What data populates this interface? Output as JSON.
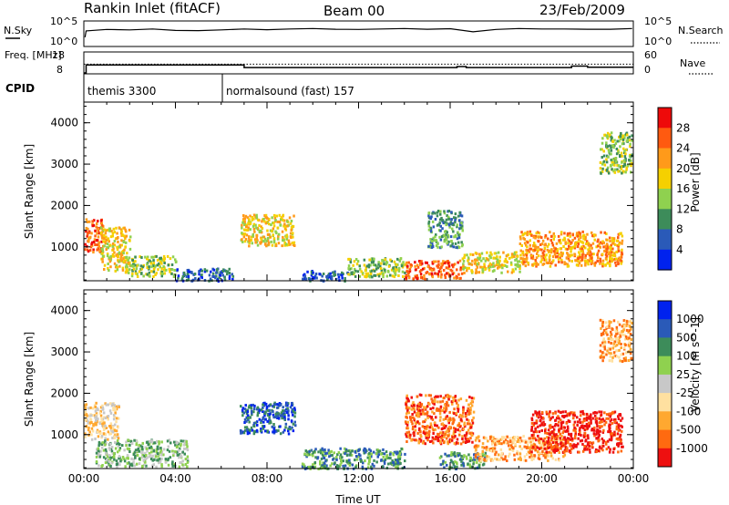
{
  "header": {
    "station": "Rankin Inlet (fitACF)",
    "beam": "Beam 00",
    "date": "23/Feb/2009"
  },
  "colors": {
    "scale_power": [
      "#0022ee",
      "#2a5ab8",
      "#3d8c5a",
      "#8fd14f",
      "#f5d000",
      "#ff9a1a",
      "#ff5a10",
      "#ee0a0a"
    ],
    "scale_velocity": [
      "#ee1010",
      "#ff6a10",
      "#ffa830",
      "#ffe0a0",
      "#c8c8c8",
      "#8fd14f",
      "#3d8c5a",
      "#2a5ab8",
      "#0022ee"
    ],
    "ground_scatter": "#a0a0a0"
  },
  "chart_data": [
    {
      "type": "line",
      "id": "nsky",
      "ylabel": "N.Sky",
      "ylabel_right": "N.Search",
      "y_ticks": [
        "10^5",
        "10^0"
      ],
      "y_ticks_right": [
        "10^5",
        "10^0"
      ],
      "xlim": [
        0,
        24
      ],
      "series": [
        {
          "values": [
            0.35,
            0.62,
            0.68,
            0.66,
            0.7,
            0.64,
            0.63,
            0.66,
            0.7,
            0.67,
            0.7,
            0.72,
            0.69,
            0.68,
            0.7,
            0.72,
            0.69,
            0.71,
            0.58,
            0.68,
            0.72,
            0.7,
            0.7,
            0.69,
            0.69,
            0.72
          ],
          "x": [
            0.05,
            0.1,
            1,
            2,
            3,
            4,
            5,
            6,
            7,
            8,
            9,
            10,
            11,
            12,
            13,
            14,
            15,
            16,
            17,
            18,
            19,
            20,
            21,
            22,
            23,
            23.95
          ]
        }
      ]
    },
    {
      "type": "line",
      "id": "freq",
      "ylabel": "Freq. [MHz]",
      "ylabel_right": "Nave",
      "y_ticks": [
        "18",
        "8"
      ],
      "y_ticks_right": [
        "60",
        "0"
      ],
      "ylim": [
        8,
        18
      ],
      "xlim": [
        0,
        24
      ],
      "series": [
        {
          "x": [
            0,
            0.1,
            0.1,
            7,
            7,
            13,
            13,
            16.3,
            16.3,
            16.7,
            16.7,
            19.5,
            19.5,
            21.3,
            21.3,
            22,
            22,
            24
          ],
          "values": [
            8,
            8,
            12,
            12,
            10.7,
            10.7,
            10.7,
            10.7,
            11.2,
            11.2,
            10.7,
            10.7,
            10.7,
            10.7,
            11.4,
            11.4,
            10.8,
            10.8
          ]
        }
      ],
      "nave_reference_line": 12.4
    },
    {
      "type": "bar",
      "id": "cpid",
      "ylabel": "CPID",
      "segments": [
        {
          "label": "themis 3300",
          "start": 0,
          "end": 6.05
        },
        {
          "label": "normalsound (fast) 157",
          "start": 6.05,
          "end": 24
        }
      ]
    },
    {
      "type": "heatmap",
      "id": "power",
      "ylabel": "Slant Range [km]",
      "colorbar_label": "Power [dB]",
      "colorbar_ticks": [
        "28",
        "24",
        "20",
        "16",
        "12",
        "8",
        "4"
      ],
      "xlim": [
        0,
        24
      ],
      "ylim": [
        180,
        4500
      ],
      "y_ticks": [
        "1000",
        "2000",
        "3000",
        "4000"
      ],
      "x_ticks": [
        "00:00",
        "04:00",
        "08:00",
        "12:00",
        "16:00",
        "20:00",
        "00:00"
      ],
      "scatter_regions": [
        {
          "x": [
            0.0,
            0.8
          ],
          "y": [
            900,
            1700
          ],
          "level": 6
        },
        {
          "x": [
            0.7,
            2.0
          ],
          "y": [
            400,
            1500
          ],
          "level": 4
        },
        {
          "x": [
            2.0,
            4.0
          ],
          "y": [
            300,
            800
          ],
          "level": 3
        },
        {
          "x": [
            4.0,
            6.5
          ],
          "y": [
            200,
            500
          ],
          "level": 1
        },
        {
          "x": [
            6.8,
            9.2
          ],
          "y": [
            1050,
            1800
          ],
          "level": 4
        },
        {
          "x": [
            9.5,
            11.5
          ],
          "y": [
            200,
            450
          ],
          "level": 1
        },
        {
          "x": [
            11.5,
            14.0
          ],
          "y": [
            300,
            750
          ],
          "level": 3
        },
        {
          "x": [
            14.0,
            16.5
          ],
          "y": [
            250,
            700
          ],
          "level": 6
        },
        {
          "x": [
            15.0,
            16.5
          ],
          "y": [
            1000,
            1900
          ],
          "level": 2
        },
        {
          "x": [
            16.5,
            19.0
          ],
          "y": [
            400,
            900
          ],
          "level": 4
        },
        {
          "x": [
            19.0,
            23.5
          ],
          "y": [
            550,
            1400
          ],
          "level": 5
        },
        {
          "x": [
            22.5,
            23.9
          ],
          "y": [
            2800,
            3800
          ],
          "level": 3
        }
      ]
    },
    {
      "type": "heatmap",
      "id": "velocity",
      "ylabel": "Slant Range [km]",
      "colorbar_label": "Velocity [m s^-1]",
      "colorbar_ticks": [
        "1000",
        "500",
        "100",
        "25",
        "-25",
        "-100",
        "-500",
        "-1000"
      ],
      "xlim": [
        0,
        24
      ],
      "ylim": [
        180,
        4500
      ],
      "y_ticks": [
        "1000",
        "2000",
        "3000",
        "4000"
      ],
      "x_ticks": [
        "00:00",
        "04:00",
        "08:00",
        "12:00",
        "16:00",
        "20:00",
        "00:00"
      ],
      "xlabel": "Time UT",
      "scatter_regions": [
        {
          "x": [
            0.0,
            1.5
          ],
          "y": [
            900,
            1800
          ],
          "level": 3
        },
        {
          "x": [
            0.5,
            4.5
          ],
          "y": [
            250,
            900
          ],
          "level": 5
        },
        {
          "x": [
            6.8,
            9.2
          ],
          "y": [
            1050,
            1800
          ],
          "level": 7
        },
        {
          "x": [
            9.5,
            14.0
          ],
          "y": [
            200,
            700
          ],
          "level": 6
        },
        {
          "x": [
            14.0,
            17.0
          ],
          "y": [
            800,
            2000
          ],
          "level": 1
        },
        {
          "x": [
            15.5,
            17.5
          ],
          "y": [
            200,
            600
          ],
          "level": 6
        },
        {
          "x": [
            17.0,
            21.0
          ],
          "y": [
            400,
            1000
          ],
          "level": 2
        },
        {
          "x": [
            19.5,
            23.5
          ],
          "y": [
            600,
            1600
          ],
          "level": 0
        },
        {
          "x": [
            22.5,
            23.9
          ],
          "y": [
            2800,
            3800
          ],
          "level": 2
        }
      ]
    }
  ]
}
